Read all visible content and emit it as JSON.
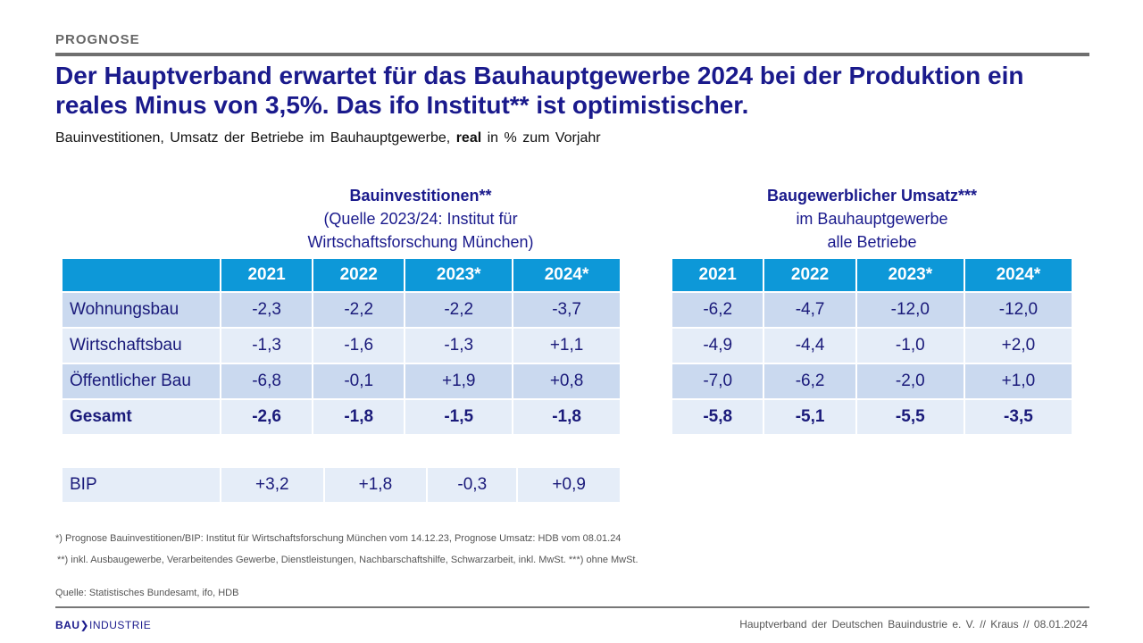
{
  "kicker": "PROGNOSE",
  "title": "Der Hauptverband erwartet für das Bauhauptgewerbe 2024 bei der Produktion ein reales Minus von 3,5%. Das ifo Institut** ist optimistischer.",
  "subtitle": {
    "before": "Bauinvestitionen, Umsatz der Betriebe im Bauhauptgewerbe,",
    "bold": "real",
    "after": "in % zum Vorjahr"
  },
  "left": {
    "caption": [
      "Bauinvestitionen**",
      "(Quelle 2023/24: Institut für",
      "Wirtschaftsforschung München)"
    ],
    "headers": [
      "",
      "2021",
      "2022",
      "2023*",
      "2024*"
    ],
    "rows": [
      [
        "Wohnungsbau",
        "-2,3",
        "-2,2",
        "-2,2",
        "-3,7"
      ],
      [
        "Wirtschaftsbau",
        "-1,3",
        "-1,6",
        "-1,3",
        "+1,1"
      ],
      [
        "Öffentlicher Bau",
        "-6,8",
        "-0,1",
        "+1,9",
        "+0,8"
      ],
      [
        "Gesamt",
        "-2,6",
        "-1,8",
        "-1,5",
        "-1,8"
      ]
    ],
    "bip": [
      "BIP",
      "+3,2",
      "+1,8",
      "-0,3",
      "+0,9"
    ]
  },
  "right": {
    "caption": [
      "Baugewerblicher Umsatz***",
      "im Bauhauptgewerbe",
      "alle Betriebe"
    ],
    "headers": [
      "2021",
      "2022",
      "2023*",
      "2024*"
    ],
    "rows": [
      [
        "-6,2",
        "-4,7",
        "-12,0",
        "-12,0"
      ],
      [
        "-4,9",
        "-4,4",
        "-1,0",
        "+2,0"
      ],
      [
        "-7,0",
        "-6,2",
        "-2,0",
        "+1,0"
      ],
      [
        "-5,8",
        "-5,1",
        "-5,5",
        "-3,5"
      ]
    ]
  },
  "footnotes": [
    "*) Prognose Bauinvestitionen/BIP: Institut für Wirtschaftsforschung München vom 14.12.23, Prognose Umsatz: HDB vom 08.01.24",
    "**) inkl. Ausbaugewerbe, Verarbeitendes Gewerbe, Dienstleistungen, Nachbarschaftshilfe, Schwarzarbeit, inkl. MwSt.  ***) ohne MwSt."
  ],
  "source": "Quelle: Statistisches Bundesamt, ifo, HDB",
  "logo": "BAUINDUSTRIE",
  "footer": "Hauptverband  der Deutschen Bauindustrie e. V.  //  Kraus  //  08.01.2024",
  "colors": {
    "header": "#0d98d8",
    "row_dark": "#cad9ef",
    "row_light": "#e5edf8",
    "text": "#1a1a8c"
  }
}
